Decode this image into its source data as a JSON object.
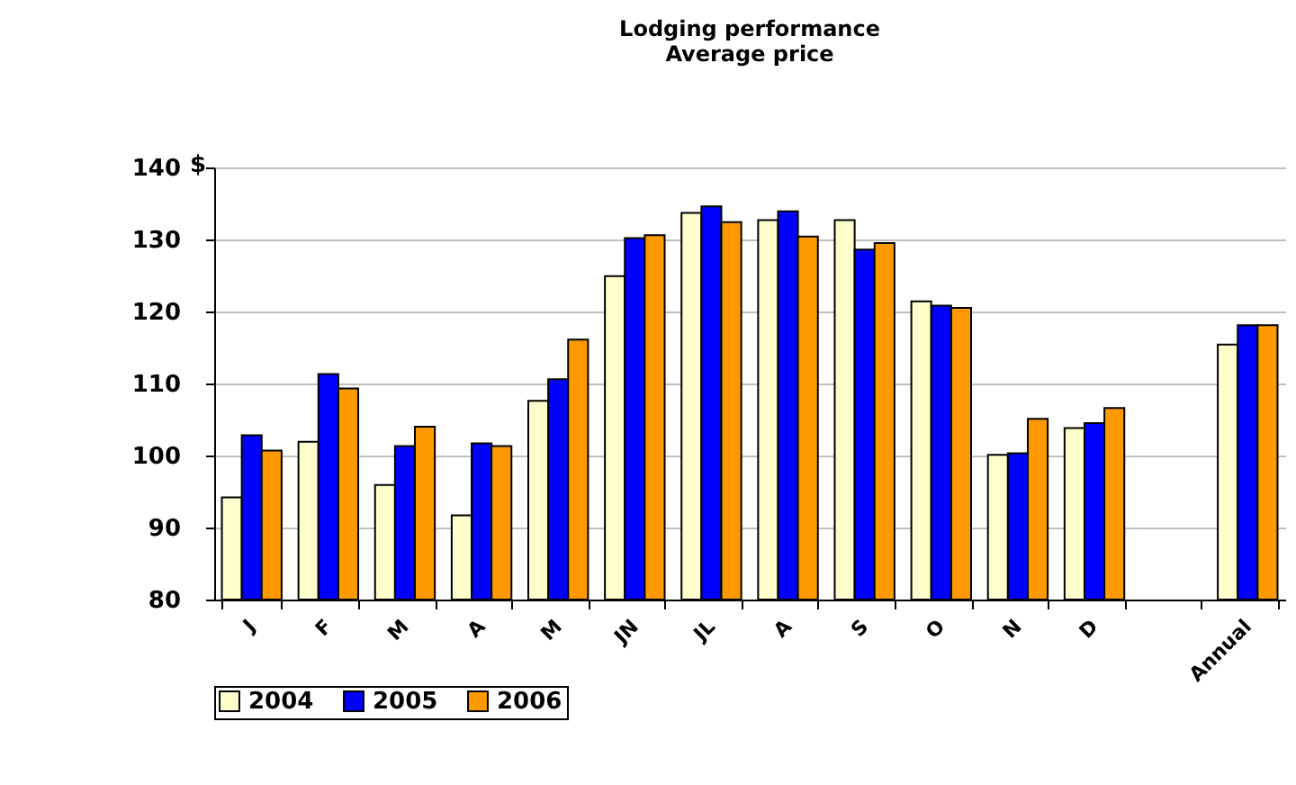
{
  "chart_data": {
    "type": "bar",
    "title": "Lodging performance\nAverage price",
    "ylabel": "$",
    "categories": [
      "J",
      "F",
      "M",
      "A",
      "M",
      "JN",
      "JL",
      "A",
      "S",
      "O",
      "N",
      "D",
      null,
      "Annual"
    ],
    "series": [
      {
        "name": "2004",
        "color": "#ffffcc",
        "values": [
          94.2,
          101.9,
          95.9,
          91.7,
          107.6,
          124.9,
          133.7,
          132.7,
          132.7,
          121.4,
          100.1,
          103.8,
          null,
          115.4
        ]
      },
      {
        "name": "2005",
        "color": "#0000ff",
        "values": [
          102.8,
          111.3,
          101.3,
          101.7,
          110.6,
          130.2,
          134.6,
          133.9,
          128.6,
          120.8,
          100.3,
          104.5,
          null,
          118.1
        ]
      },
      {
        "name": "2006",
        "color": "#ff9900",
        "values": [
          100.7,
          109.3,
          104.0,
          101.3,
          116.1,
          130.6,
          132.4,
          130.4,
          129.5,
          120.5,
          105.1,
          106.6,
          null,
          118.1
        ]
      }
    ],
    "ylim": [
      80,
      140
    ],
    "yticks": [
      80,
      90,
      100,
      110,
      120,
      130,
      140
    ],
    "grid": "y",
    "legend": "bottom"
  }
}
